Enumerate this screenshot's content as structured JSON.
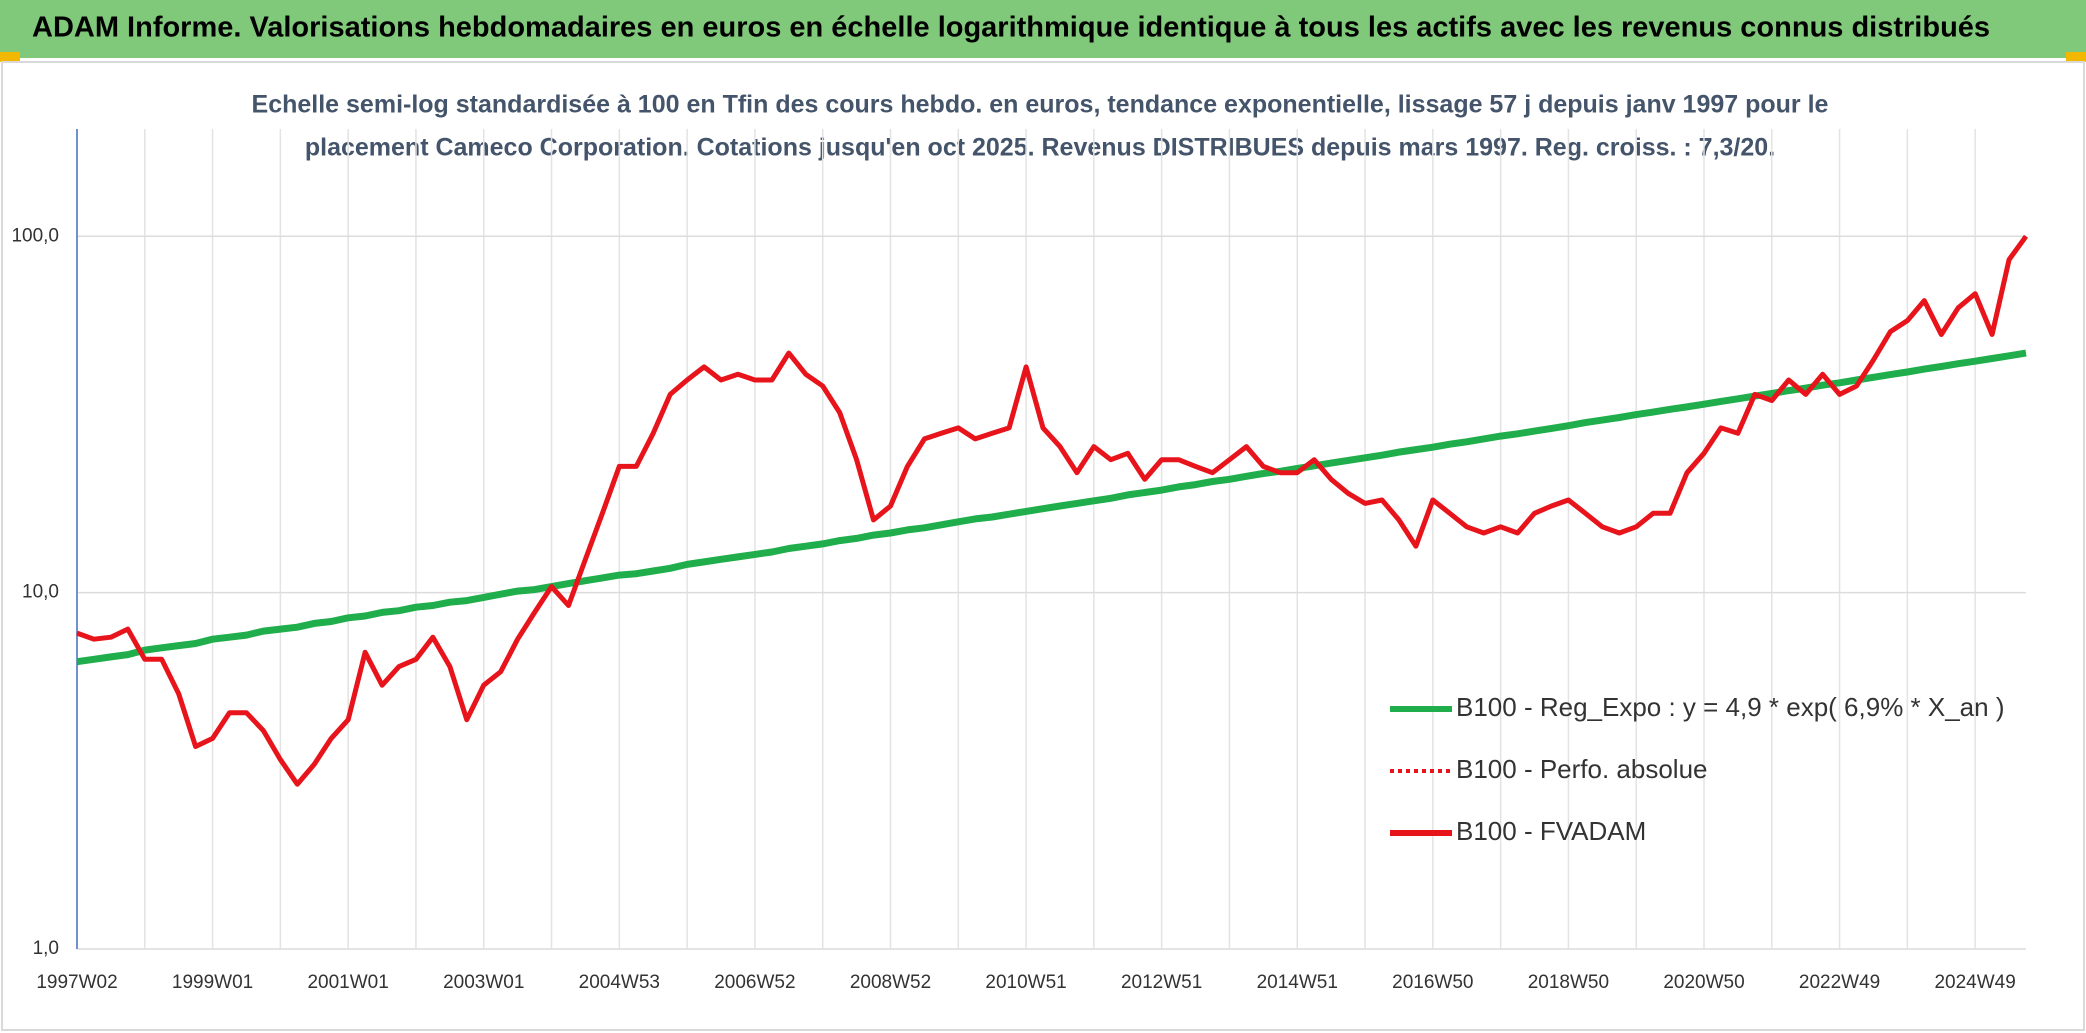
{
  "chart_data": {
    "type": "line",
    "title": "ADAM Informe. Valorisations hebdomadaires en euros en échelle logarithmique identique à tous les actifs avec les revenus connus distribués",
    "subtitle": [
      "Echelle semi-log standardisée à 100 en Tfin des cours hebdo. en euros, tendance exponentielle, lissage 57 j depuis janv 1997 pour le",
      "placement Cameco Corporation. Cotations jusqu'en oct 2025. Revenus DISTRIBUES depuis mars 1997. Reg. croiss. : 7,3/20."
    ],
    "categories": [
      "1997W02",
      null,
      null,
      null,
      null,
      null,
      null,
      null,
      "1999W01",
      null,
      null,
      null,
      null,
      null,
      null,
      null,
      "2001W01",
      null,
      null,
      null,
      null,
      null,
      null,
      null,
      "2003W01",
      null,
      null,
      null,
      null,
      null,
      null,
      null,
      "2004W53",
      null,
      null,
      null,
      null,
      null,
      null,
      null,
      "2006W52",
      null,
      null,
      null,
      null,
      null,
      null,
      null,
      "2008W52",
      null,
      null,
      null,
      null,
      null,
      null,
      null,
      "2010W51",
      null,
      null,
      null,
      null,
      null,
      null,
      null,
      "2012W51",
      null,
      null,
      null,
      null,
      null,
      null,
      null,
      "2014W51",
      null,
      null,
      null,
      null,
      null,
      null,
      null,
      "2016W50",
      null,
      null,
      null,
      null,
      null,
      null,
      null,
      "2018W50",
      null,
      null,
      null,
      null,
      null,
      null,
      null,
      "2020W50",
      null,
      null,
      null,
      null,
      null,
      null,
      null,
      "2022W49",
      null,
      null,
      null,
      null,
      null,
      null,
      null,
      "2024W49",
      null,
      null,
      null
    ],
    "series": [
      {
        "name": "B100 - Reg_Expo : y = 4,9 * exp( 6,9% *  X_an )",
        "color": "#1fae4b",
        "values": [
          6.4,
          6.5,
          6.6,
          6.7,
          6.9,
          7.0,
          7.1,
          7.2,
          7.4,
          7.5,
          7.6,
          7.8,
          7.9,
          8.0,
          8.2,
          8.3,
          8.5,
          8.6,
          8.8,
          8.9,
          9.1,
          9.2,
          9.4,
          9.5,
          9.7,
          9.9,
          10.1,
          10.2,
          10.4,
          10.6,
          10.8,
          11.0,
          11.2,
          11.3,
          11.5,
          11.7,
          12.0,
          12.2,
          12.4,
          12.6,
          12.8,
          13.0,
          13.3,
          13.5,
          13.7,
          14.0,
          14.2,
          14.5,
          14.7,
          15.0,
          15.2,
          15.5,
          15.8,
          16.1,
          16.3,
          16.6,
          16.9,
          17.2,
          17.5,
          17.8,
          18.1,
          18.4,
          18.8,
          19.1,
          19.4,
          19.8,
          20.1,
          20.5,
          20.8,
          21.2,
          21.6,
          21.9,
          22.3,
          22.7,
          23.1,
          23.5,
          23.9,
          24.3,
          24.8,
          25.2,
          25.6,
          26.1,
          26.5,
          27.0,
          27.5,
          27.9,
          28.4,
          28.9,
          29.4,
          30.0,
          30.5,
          31.0,
          31.6,
          32.1,
          32.7,
          33.2,
          33.8,
          34.4,
          35.0,
          35.6,
          36.2,
          36.9,
          37.5,
          38.2,
          38.8,
          39.5,
          40.2,
          40.9,
          41.6,
          42.4,
          43.1,
          43.9,
          44.6,
          45.4,
          46.2,
          47.0
        ]
      },
      {
        "name": "B100 - Perfo. absolue",
        "color": "#e8141b",
        "dash": "dotted"
      },
      {
        "name": "B100 - FVADAM",
        "color": "#e8141b",
        "values": [
          7.7,
          7.4,
          7.5,
          7.9,
          6.5,
          6.5,
          5.2,
          3.7,
          3.9,
          4.6,
          4.6,
          4.1,
          3.4,
          2.9,
          3.3,
          3.9,
          4.4,
          6.8,
          5.5,
          6.2,
          6.5,
          7.5,
          6.2,
          4.4,
          5.5,
          6.0,
          7.4,
          8.8,
          10.4,
          9.2,
          12.4,
          16.7,
          22.6,
          22.6,
          28,
          36,
          39.5,
          43,
          39.5,
          41,
          39.5,
          39.5,
          47,
          41,
          38,
          32,
          23.6,
          16,
          17.5,
          22.6,
          27,
          28,
          29,
          27,
          28,
          29,
          43,
          29,
          25.7,
          21.7,
          25.7,
          23.6,
          24.6,
          20.8,
          23.6,
          23.6,
          22.6,
          21.7,
          23.6,
          25.7,
          22.6,
          21.7,
          21.7,
          23.6,
          20.8,
          19.0,
          17.8,
          18.2,
          16,
          13.5,
          18.2,
          16.7,
          15.3,
          14.7,
          15.3,
          14.7,
          16.7,
          17.5,
          18.2,
          16.7,
          15.3,
          14.7,
          15.3,
          16.7,
          16.7,
          21.7,
          24.6,
          29,
          28,
          36,
          34.6,
          39.5,
          36,
          41,
          36,
          38,
          45,
          54,
          58,
          66,
          53,
          63,
          69,
          53,
          86,
          100
        ]
      }
    ],
    "ylim": [
      1,
      200
    ],
    "log": true,
    "yticks": [
      {
        "value": 1,
        "label": "1,0"
      },
      {
        "value": 10,
        "label": "10,0"
      },
      {
        "value": 100,
        "label": "100,0"
      }
    ],
    "grid": true,
    "xgrid_every": 4
  }
}
